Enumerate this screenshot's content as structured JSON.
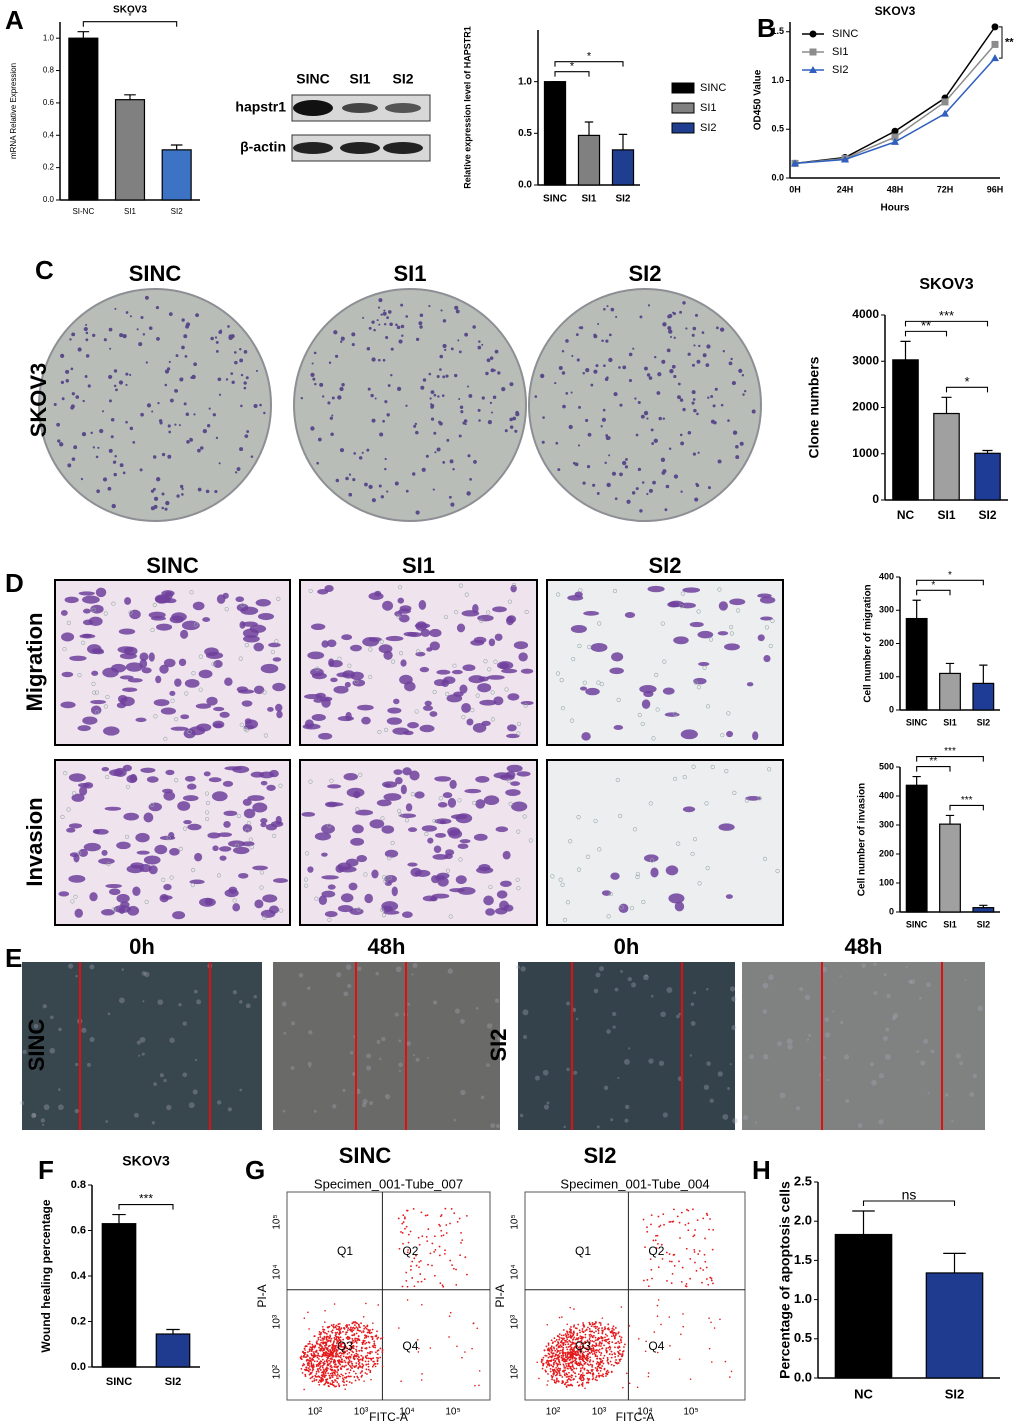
{
  "panel_labels": [
    "A",
    "B",
    "C",
    "D",
    "E",
    "F",
    "G",
    "H"
  ],
  "western": {
    "lanes": [
      "SINC",
      "SI1",
      "SI2"
    ],
    "rows": [
      "hapstr1",
      "β-actin"
    ]
  },
  "images": {
    "plate_cols": [
      "SINC",
      "SI1",
      "SI2"
    ],
    "plate_row": "SKOV3",
    "transwell_cols": [
      "SINC",
      "SI1",
      "SI2"
    ],
    "transwell_rows": [
      "Migration",
      "Invasion"
    ],
    "wound_cols": [
      "0h",
      "48h",
      "0h",
      "48h"
    ],
    "wound_rows": [
      "SINC",
      "SI2"
    ]
  },
  "flow_panels": [
    {
      "title": "SINC",
      "specimen": "Specimen_001-Tube_007",
      "x_label": "FITC-A",
      "y_label": "PI-A",
      "quadrants": [
        "Q1",
        "Q2",
        "Q3",
        "Q4"
      ],
      "xticks": [
        "10²",
        "10³",
        "10⁴",
        "10⁵"
      ],
      "yticks": [
        "10²",
        "10³",
        "10⁴",
        "10⁵"
      ]
    },
    {
      "title": "SI2",
      "specimen": "Specimen_001-Tube_004",
      "x_label": "FITC-A",
      "y_label": "PI-A",
      "quadrants": [
        "Q1",
        "Q2",
        "Q3",
        "Q4"
      ],
      "xticks": [
        "10²",
        "10³",
        "10⁴",
        "10⁵"
      ],
      "yticks": [
        "10²",
        "10³",
        "10⁴",
        "10⁵"
      ]
    }
  ],
  "chart_data": [
    {
      "type": "bar",
      "title": "SKOV3",
      "y_label": "mRNA Relative Expression",
      "categories": [
        "SI-NC",
        "SI1",
        "SI2"
      ],
      "values": [
        1.0,
        0.62,
        0.31
      ],
      "errors": [
        0.04,
        0.03,
        0.03
      ],
      "colors": [
        "#000000",
        "#808080",
        "#3d73c4"
      ],
      "ylim": [
        0,
        1.1
      ],
      "yticks": [
        {
          "value": 0,
          "label": "0.0"
        },
        0.2,
        0.4,
        0.6,
        0.8,
        {
          "value": 1,
          "label": "1.0"
        }
      ],
      "comparisons": [
        {
          "pair": [
            "SI-NC",
            "SI2"
          ],
          "label": "*"
        }
      ]
    },
    {
      "type": "bar",
      "y_label": "Relative expression level of HAPSTR1",
      "categories": [
        "SINC",
        "SI1",
        "SI2"
      ],
      "values": [
        1.0,
        0.48,
        0.34
      ],
      "errors": [
        0,
        0.13,
        0.15
      ],
      "colors": [
        "#000000",
        "#808080",
        "#1f3e8f"
      ],
      "ylim": [
        0,
        1.5
      ],
      "yticks": [
        {
          "value": 0,
          "label": "0.0"
        },
        0.5,
        {
          "value": 1,
          "label": "1.0"
        }
      ],
      "legend": "right",
      "comparisons": [
        {
          "pair": [
            "SINC",
            "SI1"
          ],
          "label": "*"
        },
        {
          "pair": [
            "SINC",
            "SI2"
          ],
          "label": "*"
        }
      ]
    },
    {
      "type": "line",
      "title": "SKOV3",
      "x_label": "Hours",
      "y_label": "OD450 Value",
      "categories": [
        "0H",
        "24H",
        "48H",
        "72H",
        "96H"
      ],
      "ylim": [
        0,
        1.6
      ],
      "yticks": [
        {
          "value": 0,
          "label": "0.0"
        },
        0.5,
        {
          "value": 1,
          "label": "1.0"
        },
        1.5
      ],
      "legend": "upper left",
      "annotation": "**",
      "series": [
        {
          "name": "SINC",
          "color": "#000000",
          "marker": "circle",
          "values": [
            0.15,
            0.21,
            0.48,
            0.82,
            1.55
          ]
        },
        {
          "name": "SI1",
          "color": "#8c8c8c",
          "marker": "square",
          "values": [
            0.15,
            0.2,
            0.42,
            0.78,
            1.37
          ]
        },
        {
          "name": "SI2",
          "color": "#2f5fbf",
          "marker": "triangle",
          "values": [
            0.15,
            0.19,
            0.37,
            0.66,
            1.23
          ]
        }
      ]
    },
    {
      "type": "bar",
      "title": "SKOV3",
      "y_label": "Clone numbers",
      "categories": [
        "NC",
        "SI1",
        "SI2"
      ],
      "values": [
        3030,
        1870,
        1010
      ],
      "errors": [
        400,
        350,
        60
      ],
      "colors": [
        "#000000",
        "#a0a0a0",
        "#1e3c96"
      ],
      "ylim": [
        0,
        4000
      ],
      "yticks": [
        0,
        1000,
        2000,
        3000,
        4000
      ],
      "comparisons": [
        {
          "pair": [
            "NC",
            "SI1"
          ],
          "label": "**"
        },
        {
          "pair": [
            "SI1",
            "SI2"
          ],
          "label": "*"
        },
        {
          "pair": [
            "NC",
            "SI2"
          ],
          "label": "***"
        }
      ]
    },
    {
      "type": "bar",
      "y_label": "Cell number of migration",
      "categories": [
        "SINC",
        "SI1",
        "SI2"
      ],
      "values": [
        275,
        110,
        80
      ],
      "errors": [
        55,
        30,
        55
      ],
      "colors": [
        "#000000",
        "#a0a0a0",
        "#1e3c96"
      ],
      "ylim": [
        0,
        400
      ],
      "yticks": [
        0,
        100,
        200,
        300,
        400
      ],
      "comparisons": [
        {
          "pair": [
            "SINC",
            "SI1"
          ],
          "label": "*"
        },
        {
          "pair": [
            "SINC",
            "SI2"
          ],
          "label": "*"
        }
      ]
    },
    {
      "type": "bar",
      "y_label": "Cell number of invasion",
      "categories": [
        "SINC",
        "SI1",
        "SI2"
      ],
      "values": [
        437,
        303,
        15
      ],
      "errors": [
        30,
        30,
        8
      ],
      "colors": [
        "#000000",
        "#a0a0a0",
        "#1e3c96"
      ],
      "ylim": [
        0,
        500
      ],
      "yticks": [
        0,
        100,
        200,
        300,
        400,
        500
      ],
      "comparisons": [
        {
          "pair": [
            "SINC",
            "SI1"
          ],
          "label": "**"
        },
        {
          "pair": [
            "SI1",
            "SI2"
          ],
          "label": "***"
        },
        {
          "pair": [
            "SINC",
            "SI2"
          ],
          "label": "***"
        }
      ]
    },
    {
      "type": "bar",
      "title": "SKOV3",
      "y_label": "Wound healing percentage",
      "categories": [
        "SINC",
        "SI2"
      ],
      "values": [
        0.63,
        0.145
      ],
      "errors": [
        0.04,
        0.02
      ],
      "colors": [
        "#000000",
        "#1f3b90"
      ],
      "ylim": [
        0,
        0.8
      ],
      "yticks": [
        {
          "value": 0,
          "label": "0.0"
        },
        0.2,
        0.4,
        0.6,
        0.8
      ],
      "comparisons": [
        {
          "pair": [
            "SINC",
            "SI2"
          ],
          "label": "***"
        }
      ]
    },
    {
      "type": "bar",
      "y_label": "Percentage of apoptosis cells",
      "categories": [
        "NC",
        "SI2"
      ],
      "values": [
        1.83,
        1.34
      ],
      "errors": [
        0.3,
        0.25
      ],
      "colors": [
        "#000000",
        "#1f3b90"
      ],
      "ylim": [
        0,
        2.5
      ],
      "yticks": [
        {
          "value": 0,
          "label": "0.0"
        },
        0.5,
        {
          "value": 1,
          "label": "1.0"
        },
        1.5,
        {
          "value": 2,
          "label": "2.0"
        },
        2.5
      ],
      "comparisons": [
        {
          "pair": [
            "NC",
            "SI2"
          ],
          "label": "ns"
        }
      ]
    }
  ]
}
